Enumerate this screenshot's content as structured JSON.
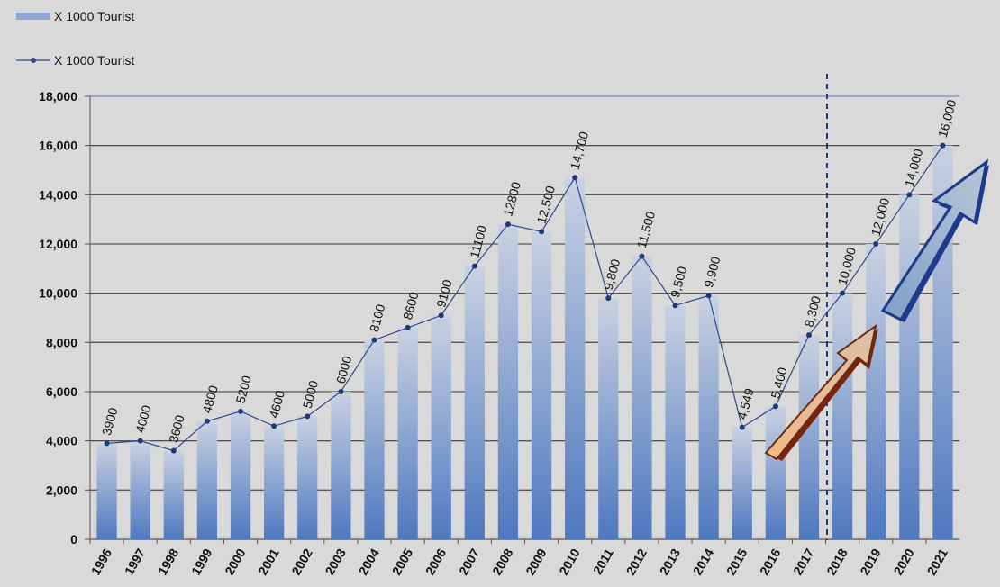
{
  "chart_data": {
    "type": "bar",
    "categories": [
      "1996",
      "1997",
      "1998",
      "1999",
      "2000",
      "2001",
      "2002",
      "2003",
      "2004",
      "2005",
      "2006",
      "2007",
      "2008",
      "2009",
      "2010",
      "2011",
      "2012",
      "2013",
      "2014",
      "2015",
      "2016",
      "2017",
      "2018",
      "2019",
      "2020",
      "2021"
    ],
    "series": [
      {
        "name": "X 1000 Tourist",
        "type": "bar",
        "color": "#5b82c4",
        "values": [
          3900,
          4000,
          3600,
          4800,
          5200,
          4600,
          5000,
          6000,
          8100,
          8600,
          9100,
          11100,
          12800,
          12500,
          14700,
          9800,
          11500,
          9500,
          9900,
          4549,
          5400,
          8300,
          10000,
          12000,
          14000,
          16000
        ]
      },
      {
        "name": "X 1000 Tourist",
        "type": "line",
        "color": "#2e4a8a",
        "values": [
          3900,
          4000,
          3600,
          4800,
          5200,
          4600,
          5000,
          6000,
          8100,
          8600,
          9100,
          11100,
          12800,
          12500,
          14700,
          9800,
          11500,
          9500,
          9900,
          4549,
          5400,
          8300,
          10000,
          12000,
          14000,
          16000
        ],
        "value_labels": [
          "3900",
          "4000",
          "3600",
          "4800",
          "5200",
          "4600",
          "5000",
          "6000",
          "8100",
          "8600",
          "9100",
          "11100",
          "12800",
          "12,500",
          "14,700",
          "9,800",
          "11,500",
          "9,500",
          "9,900",
          "4,549",
          "5,400",
          "8,300",
          "10,000",
          "12,000",
          "14,000",
          "16,000"
        ]
      }
    ],
    "ylim": [
      0,
      18000
    ],
    "yticks": [
      0,
      {
        "value": 2000,
        "label": "2,000"
      },
      {
        "value": 4000,
        "label": "4,000"
      },
      {
        "value": 6000,
        "label": "6,000"
      },
      {
        "value": 8000,
        "label": "8,000"
      },
      {
        "value": 10000,
        "label": "10,000"
      },
      {
        "value": 12000,
        "label": "12,000"
      },
      {
        "value": 14000,
        "label": "14,000"
      },
      {
        "value": 16000,
        "label": "16,000"
      },
      {
        "value": 18000,
        "label": "18,000"
      }
    ],
    "grid": true
  }
}
